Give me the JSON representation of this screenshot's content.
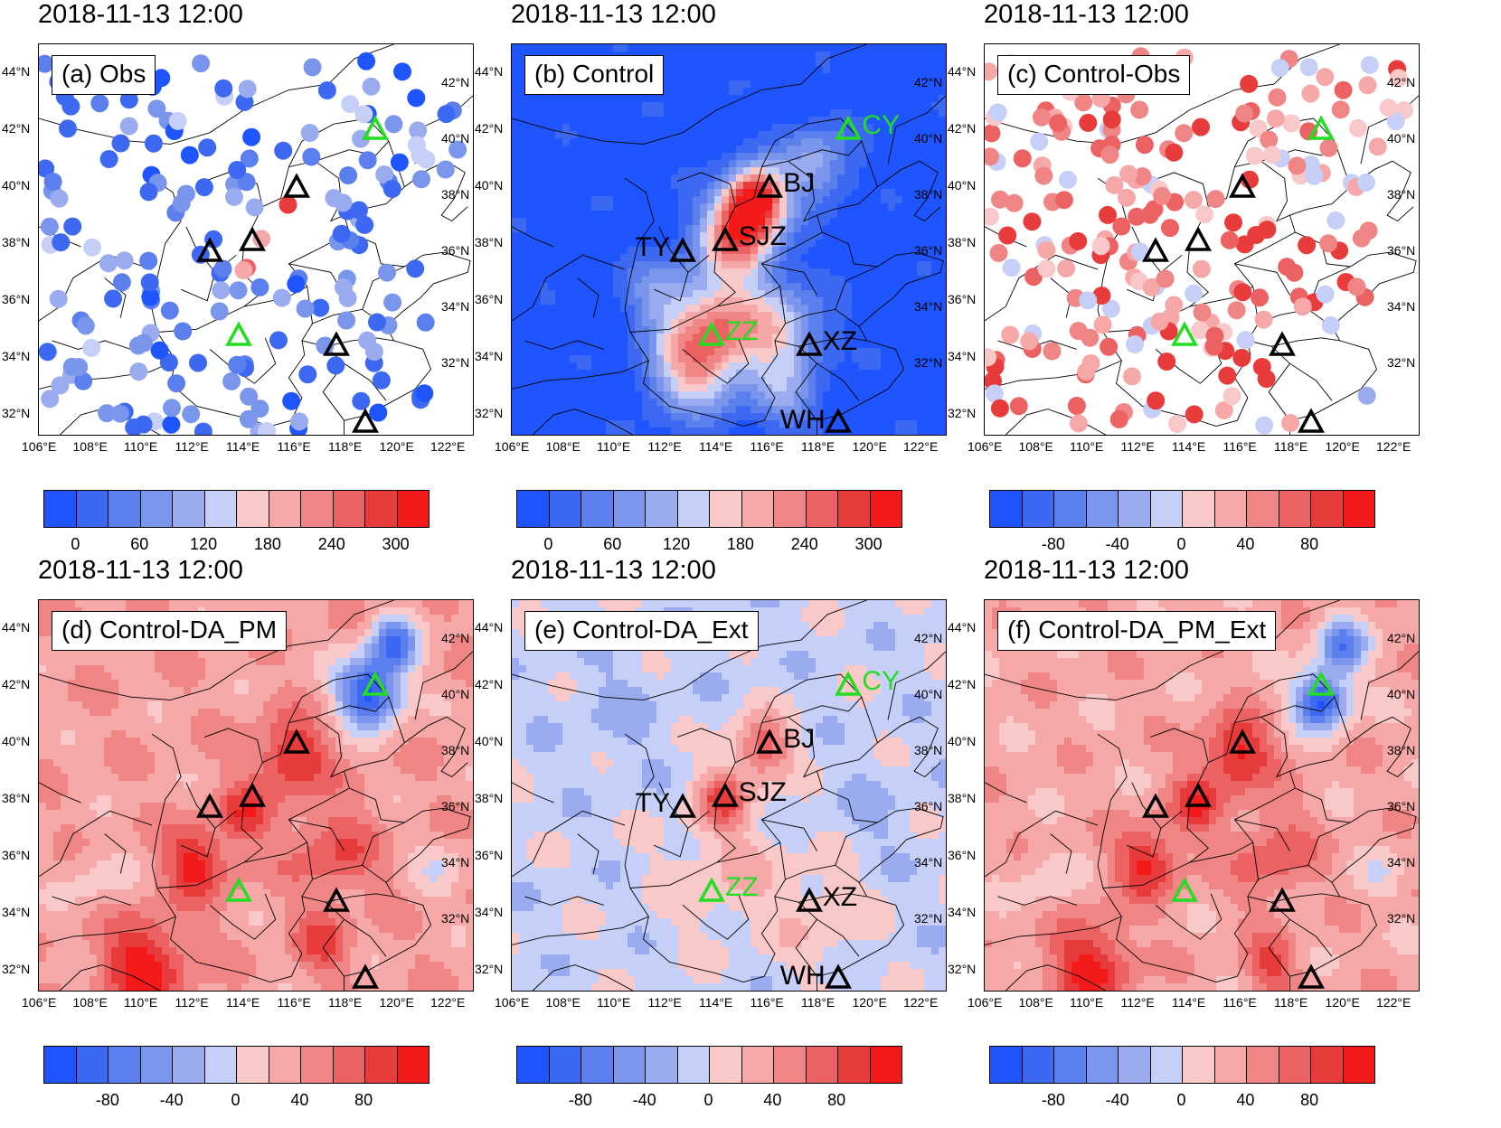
{
  "panels": [
    {
      "id": "a",
      "title": "2018-11-13 12:00",
      "label": "(a) Obs",
      "field": "obs_points",
      "colorbar": "abs",
      "station_labels": false,
      "green": [
        "CY",
        "ZZ"
      ]
    },
    {
      "id": "b",
      "title": "2018-11-13 12:00",
      "label": "(b) Control",
      "field": "control",
      "colorbar": "abs",
      "station_labels": true,
      "green": [
        "CY",
        "ZZ"
      ]
    },
    {
      "id": "c",
      "title": "2018-11-13 12:00",
      "label": "(c) Control-Obs",
      "field": "diff_points",
      "colorbar": "diff",
      "station_labels": false,
      "green": [
        "CY",
        "ZZ"
      ]
    },
    {
      "id": "d",
      "title": "2018-11-13 12:00",
      "label": "(d) Control-DA_PM",
      "field": "da_pm",
      "colorbar": "diff",
      "station_labels": false,
      "green": [
        "CY",
        "ZZ"
      ]
    },
    {
      "id": "e",
      "title": "2018-11-13 12:00",
      "label": "(e) Control-DA_Ext",
      "field": "da_ext",
      "colorbar": "diff",
      "station_labels": true,
      "green": [
        "CY",
        "ZZ"
      ]
    },
    {
      "id": "f",
      "title": "2018-11-13 12:00",
      "label": "(f) Control-DA_PM_Ext",
      "field": "da_pm_ext",
      "colorbar": "diff",
      "station_labels": false,
      "green": [
        "CY",
        "ZZ"
      ]
    }
  ],
  "axes": {
    "left_lat_labels": [
      "44°N",
      "42°N",
      "40°N",
      "38°N",
      "36°N",
      "34°N",
      "32°N"
    ],
    "right_lat_labels": [
      "42°N",
      "40°N",
      "38°N",
      "36°N",
      "34°N",
      "32°N"
    ],
    "lon_labels": [
      "106°E",
      "108°E",
      "110°E",
      "112°E",
      "114°E",
      "116°E",
      "118°E",
      "120°E",
      "122°E"
    ]
  },
  "stations": [
    {
      "name": "CY",
      "lon": 118.8,
      "lat": 42.0
    },
    {
      "name": "BJ",
      "lon": 115.8,
      "lat": 39.95
    },
    {
      "name": "SJZ",
      "lon": 114.1,
      "lat": 38.1
    },
    {
      "name": "TY",
      "lon": 112.5,
      "lat": 37.7
    },
    {
      "name": "ZZ",
      "lon": 113.6,
      "lat": 34.75
    },
    {
      "name": "XZ",
      "lon": 117.3,
      "lat": 34.4
    },
    {
      "name": "WH",
      "lon": 118.4,
      "lat": 31.7
    }
  ],
  "colors": {
    "station_black": "#000000",
    "station_green": "#22dd22",
    "palette": [
      "#1f55ff",
      "#3d69f2",
      "#5b80ee",
      "#7a95ec",
      "#9aacef",
      "#c5cff7",
      "#f9c9c9",
      "#f6a8a8",
      "#f08585",
      "#ec6262",
      "#e83c3c",
      "#f51a1a"
    ]
  },
  "colorbars": {
    "abs": {
      "min": -30,
      "max": 330,
      "tick_values": [
        0,
        60,
        120,
        180,
        240,
        300
      ],
      "tick_labels": [
        "0",
        "60",
        "120",
        "180",
        "240",
        "300"
      ]
    },
    "diff": {
      "min": -120,
      "max": 120,
      "tick_values": [
        -80,
        -40,
        0,
        40,
        80
      ],
      "tick_labels": [
        "-80",
        "-40",
        "0",
        "40",
        "80"
      ]
    }
  }
}
